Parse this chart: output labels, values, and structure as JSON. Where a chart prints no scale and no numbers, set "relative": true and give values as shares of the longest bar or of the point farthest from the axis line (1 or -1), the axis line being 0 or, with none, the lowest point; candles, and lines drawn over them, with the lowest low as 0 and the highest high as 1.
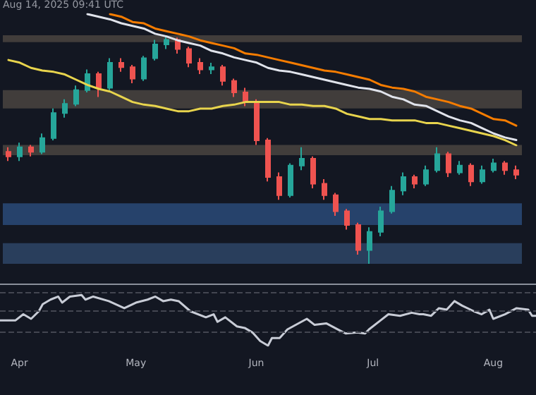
{
  "chart_data": [
    {
      "type": "candlestick",
      "relative": true,
      "annotations": [
        "Aug 14, 2025 09:41 UTC"
      ],
      "categories": [
        null,
        null,
        null,
        null,
        null,
        null,
        null,
        null,
        null,
        null,
        null,
        null,
        null,
        null,
        null,
        null,
        null,
        null,
        null,
        null,
        null,
        null,
        null,
        null,
        null,
        null,
        null,
        null,
        null,
        null,
        null,
        null,
        null,
        null,
        null,
        null,
        null,
        null,
        null,
        null,
        null,
        null,
        null,
        null,
        null,
        null
      ],
      "ohlc": [
        [
          0.49,
          0.51,
          0.45,
          0.47
        ],
        [
          0.47,
          0.53,
          0.45,
          0.51
        ],
        [
          0.51,
          0.52,
          0.47,
          0.49
        ],
        [
          0.49,
          0.57,
          0.48,
          0.55
        ],
        [
          0.55,
          0.68,
          0.54,
          0.66
        ],
        [
          0.66,
          0.72,
          0.64,
          0.7
        ],
        [
          0.7,
          0.78,
          0.69,
          0.76
        ],
        [
          0.76,
          0.85,
          0.75,
          0.83
        ],
        [
          0.83,
          0.84,
          0.73,
          0.77
        ],
        [
          0.77,
          0.9,
          0.76,
          0.88
        ],
        [
          0.88,
          0.9,
          0.84,
          0.86
        ],
        [
          0.86,
          0.87,
          0.79,
          0.81
        ],
        [
          0.81,
          0.91,
          0.8,
          0.9
        ],
        [
          0.9,
          0.98,
          0.89,
          0.96
        ],
        [
          0.96,
          1.0,
          0.94,
          0.98
        ],
        [
          0.98,
          0.99,
          0.92,
          0.94
        ],
        [
          0.94,
          0.95,
          0.86,
          0.88
        ],
        [
          0.88,
          0.9,
          0.83,
          0.85
        ],
        [
          0.85,
          0.88,
          0.83,
          0.86
        ],
        [
          0.86,
          0.87,
          0.78,
          0.8
        ],
        [
          0.8,
          0.81,
          0.73,
          0.75
        ],
        [
          0.75,
          0.77,
          0.69,
          0.71
        ],
        [
          0.71,
          0.72,
          0.52,
          0.54
        ],
        [
          0.54,
          0.55,
          0.36,
          0.38
        ],
        [
          0.38,
          0.4,
          0.28,
          0.3
        ],
        [
          0.3,
          0.44,
          0.29,
          0.43
        ],
        [
          0.43,
          0.51,
          0.41,
          0.46
        ],
        [
          0.46,
          0.47,
          0.33,
          0.35
        ],
        [
          0.35,
          0.37,
          0.28,
          0.3
        ],
        [
          0.3,
          0.31,
          0.21,
          0.23
        ],
        [
          0.23,
          0.24,
          0.15,
          0.17
        ],
        [
          0.17,
          0.18,
          0.04,
          0.06
        ],
        [
          0.06,
          0.16,
          0.0,
          0.14
        ],
        [
          0.14,
          0.25,
          0.12,
          0.23
        ],
        [
          0.23,
          0.34,
          0.22,
          0.32
        ],
        [
          0.32,
          0.4,
          0.3,
          0.38
        ],
        [
          0.38,
          0.39,
          0.33,
          0.35
        ],
        [
          0.35,
          0.43,
          0.34,
          0.41
        ],
        [
          0.41,
          0.51,
          0.4,
          0.48
        ],
        [
          0.48,
          0.49,
          0.38,
          0.4
        ],
        [
          0.4,
          0.45,
          0.39,
          0.43
        ],
        [
          0.43,
          0.44,
          0.34,
          0.36
        ],
        [
          0.36,
          0.43,
          0.35,
          0.41
        ],
        [
          0.41,
          0.46,
          0.4,
          0.44
        ],
        [
          0.44,
          0.45,
          0.39,
          0.41
        ],
        [
          0.41,
          0.43,
          0.37,
          0.39
        ]
      ],
      "bands": [
        {
          "axis": "y",
          "from": 0.97,
          "to": 1.0,
          "color": "#4a4440"
        },
        {
          "axis": "y",
          "from": 0.68,
          "to": 0.76,
          "color": "#4a4440"
        },
        {
          "axis": "y",
          "from": 0.475,
          "to": 0.52,
          "color": "#4a4440"
        },
        {
          "axis": "y",
          "from": 0.17,
          "to": 0.265,
          "color": "#2a4a78"
        },
        {
          "axis": "y",
          "from": 0.0,
          "to": 0.09,
          "color": "#2e4566"
        }
      ]
    },
    {
      "type": "line",
      "relative": true,
      "categories": [
        null,
        null,
        null,
        null,
        null,
        null,
        null,
        null,
        null,
        null,
        null,
        null,
        null,
        null,
        null,
        null,
        null,
        null,
        null,
        null,
        null,
        null,
        null,
        null,
        null,
        null,
        null,
        null,
        null,
        null,
        null,
        null,
        null,
        null,
        null,
        null,
        null,
        null,
        null,
        null,
        null,
        null,
        null,
        null,
        null,
        null
      ],
      "series": [
        {
          "color": "#e8d44d",
          "values": [
            0.65,
            0.63,
            0.59,
            0.57,
            0.56,
            0.54,
            0.5,
            0.46,
            0.43,
            0.41,
            0.37,
            0.33,
            0.31,
            0.3,
            0.28,
            0.26,
            0.26,
            0.28,
            0.28,
            0.3,
            0.31,
            0.33,
            0.33,
            0.33,
            0.33,
            0.31,
            0.31,
            0.3,
            0.3,
            0.28,
            0.24,
            0.22,
            0.2,
            0.2,
            0.19,
            0.19,
            0.19,
            0.17,
            0.17,
            0.15,
            0.13,
            0.11,
            0.09,
            0.07,
            0.04,
            0.0
          ]
        },
        {
          "color": "#e0e3eb",
          "values": [
            null,
            null,
            null,
            null,
            null,
            null,
            null,
            1.0,
            0.98,
            0.96,
            0.93,
            0.91,
            0.89,
            0.85,
            0.83,
            0.8,
            0.78,
            0.76,
            0.72,
            0.7,
            0.67,
            0.65,
            0.63,
            0.59,
            0.57,
            0.56,
            0.54,
            0.52,
            0.5,
            0.48,
            0.46,
            0.44,
            0.43,
            0.41,
            0.37,
            0.35,
            0.31,
            0.3,
            0.26,
            0.22,
            0.19,
            0.17,
            0.13,
            0.09,
            0.06,
            0.04
          ]
        },
        {
          "color": "#f57c00",
          "values": [
            null,
            null,
            null,
            null,
            null,
            null,
            null,
            null,
            null,
            1.0,
            0.98,
            0.94,
            0.93,
            0.89,
            0.87,
            0.85,
            0.83,
            0.8,
            0.78,
            0.76,
            0.74,
            0.7,
            0.69,
            0.67,
            0.65,
            0.63,
            0.61,
            0.59,
            0.57,
            0.56,
            0.54,
            0.52,
            0.5,
            0.46,
            0.44,
            0.43,
            0.41,
            0.37,
            0.35,
            0.33,
            0.3,
            0.28,
            0.24,
            0.2,
            0.19,
            0.15
          ]
        }
      ]
    },
    {
      "type": "line",
      "relative": true,
      "color": "#c8ccd6",
      "xlim": [
        "2025-03-27",
        "2025-08-12"
      ],
      "xticks": [
        {
          "value": "2025-04-01",
          "label": "Apr"
        },
        {
          "value": "2025-05-01",
          "label": "May"
        },
        {
          "value": "2025-06-01",
          "label": "Jun"
        },
        {
          "value": "2025-07-01",
          "label": "Jul"
        },
        {
          "value": "2025-08-01",
          "label": "Aug"
        }
      ],
      "x": [
        "2025-03-27",
        "2025-03-31",
        "2025-04-02",
        "2025-04-04",
        "2025-04-06",
        "2025-04-07",
        "2025-04-09",
        "2025-04-11",
        "2025-04-12",
        "2025-04-14",
        "2025-04-17",
        "2025-04-18",
        "2025-04-20",
        "2025-04-24",
        "2025-04-28",
        "2025-05-01",
        "2025-05-04",
        "2025-05-06",
        "2025-05-08",
        "2025-05-10",
        "2025-05-12",
        "2025-05-15",
        "2025-05-19",
        "2025-05-21",
        "2025-05-22",
        "2025-05-24",
        "2025-05-27",
        "2025-05-29",
        "2025-05-31",
        "2025-06-02",
        "2025-06-04",
        "2025-06-05",
        "2025-06-07",
        "2025-06-09",
        "2025-06-14",
        "2025-06-16",
        "2025-06-19",
        "2025-06-22",
        "2025-06-24",
        "2025-06-27",
        "2025-06-29",
        "2025-06-30",
        "2025-07-03",
        "2025-07-05",
        "2025-07-08",
        "2025-07-11",
        "2025-07-13",
        "2025-07-14",
        "2025-07-16",
        "2025-07-18",
        "2025-07-20",
        "2025-07-22",
        "2025-07-24",
        "2025-07-27",
        "2025-07-29",
        "2025-07-31",
        "2025-08-01",
        "2025-08-04",
        "2025-08-07",
        "2025-08-10",
        "2025-08-11",
        "2025-08-12"
      ],
      "values": [
        0.5,
        0.5,
        0.62,
        0.53,
        0.68,
        0.82,
        0.91,
        0.97,
        0.85,
        0.97,
        1.0,
        0.91,
        0.97,
        0.88,
        0.74,
        0.85,
        0.91,
        0.97,
        0.88,
        0.91,
        0.88,
        0.68,
        0.56,
        0.62,
        0.47,
        0.56,
        0.38,
        0.35,
        0.26,
        0.09,
        0.0,
        0.15,
        0.15,
        0.32,
        0.53,
        0.41,
        0.44,
        0.32,
        0.24,
        0.26,
        0.24,
        0.32,
        0.5,
        0.62,
        0.59,
        0.65,
        0.62,
        0.62,
        0.59,
        0.74,
        0.71,
        0.88,
        0.79,
        0.68,
        0.62,
        0.71,
        0.53,
        0.62,
        0.74,
        0.71,
        0.59,
        0.59
      ],
      "ref_lines": [
        {
          "axis": "y",
          "value": 1.06,
          "line_style": "dashed",
          "color": "#434651"
        },
        {
          "axis": "y",
          "value": 0.68,
          "line_style": "dashed",
          "color": "#434651"
        },
        {
          "axis": "y",
          "value": 0.26,
          "line_style": "dashed",
          "color": "#434651"
        }
      ]
    }
  ]
}
